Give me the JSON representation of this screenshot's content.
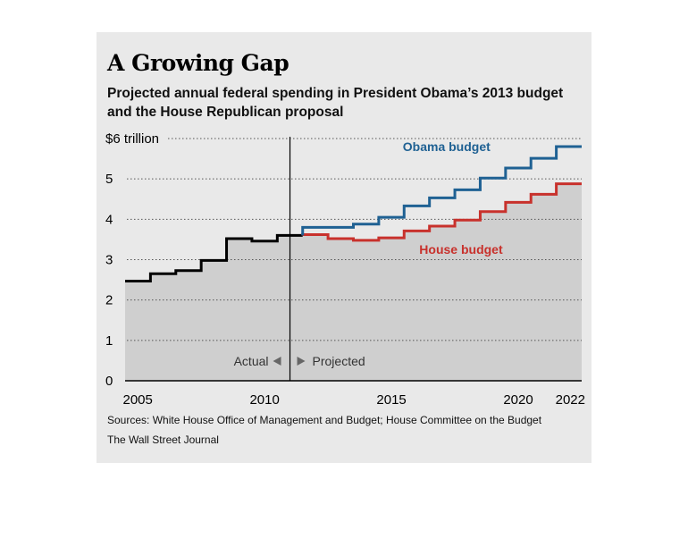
{
  "chart_data": {
    "type": "line",
    "title": "A Growing Gap",
    "subtitle": "Projected annual federal spending in President Obama’s 2013 budget and the House Republican proposal",
    "unit_label": "$6 trillion",
    "y_ticks": [
      0,
      1,
      2,
      3,
      4,
      5,
      6
    ],
    "y_tick_labels": [
      "0",
      "1",
      "2",
      "3",
      "4",
      "5",
      "$6 trillion"
    ],
    "ylim": [
      0,
      6
    ],
    "x_ticks": [
      2005,
      2010,
      2015,
      2020,
      2022
    ],
    "x_tick_labels": [
      "2005",
      "2010",
      "2015",
      "2020",
      "2022"
    ],
    "xlim": [
      2005,
      2022
    ],
    "grid": "horizontal dotted",
    "series": [
      {
        "name": "",
        "role": "actual",
        "color": "#000000",
        "x": [
          2005,
          2006,
          2007,
          2008,
          2009,
          2010,
          2011
        ],
        "values": [
          2.47,
          2.65,
          2.73,
          2.98,
          3.52,
          3.46,
          3.6
        ]
      },
      {
        "name": "Obama budget",
        "role": "projected",
        "color": "#1f6193",
        "x": [
          2012,
          2013,
          2014,
          2015,
          2016,
          2017,
          2018,
          2019,
          2020,
          2021,
          2022
        ],
        "values": [
          3.8,
          3.8,
          3.88,
          4.05,
          4.33,
          4.53,
          4.73,
          5.02,
          5.27,
          5.51,
          5.8
        ]
      },
      {
        "name": "House budget",
        "role": "projected",
        "color": "#c8312c",
        "x": [
          2012,
          2013,
          2014,
          2015,
          2016,
          2017,
          2018,
          2019,
          2020,
          2021,
          2022
        ],
        "values": [
          3.62,
          3.52,
          3.48,
          3.54,
          3.71,
          3.83,
          3.98,
          4.19,
          4.42,
          4.62,
          4.88
        ]
      }
    ],
    "divider": {
      "x": 2011.5,
      "left_label": "Actual",
      "right_label": "Projected"
    },
    "sources": "Sources: White House Office of Management and Budget; House Committee on the Budget",
    "publisher": "The Wall Street Journal",
    "colors": {
      "background": "#e9e9e9",
      "area_fill": "#cfcfcf",
      "grid": "#555555"
    }
  }
}
